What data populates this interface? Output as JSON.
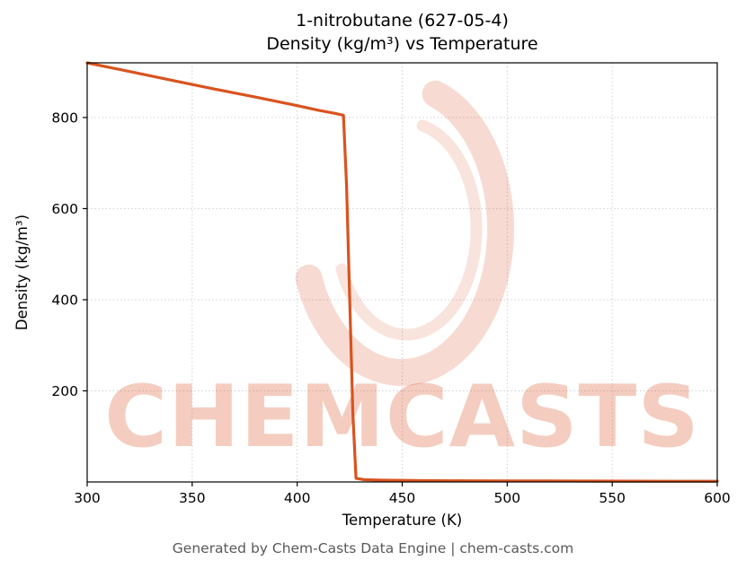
{
  "title": {
    "line1": "1-nitrobutane (627-05-4)",
    "line2": "Density (kg/m³) vs Temperature"
  },
  "footer": "Generated by Chem-Casts Data Engine | chem-casts.com",
  "watermark": {
    "text": "CHEMCASTS",
    "color": "#d94a1e",
    "text_opacity": 0.28,
    "swirl_opacity": 0.2
  },
  "chart_data": {
    "type": "line",
    "title": "1-nitrobutane (627-05-4) Density (kg/m³) vs Temperature",
    "xlabel": "Temperature (K)",
    "ylabel": "Density (kg/m³)",
    "xlim": [
      300,
      600
    ],
    "ylim": [
      0,
      920
    ],
    "xticks": [
      300,
      350,
      400,
      450,
      500,
      550,
      600
    ],
    "yticks": [
      200,
      400,
      600,
      800
    ],
    "grid": true,
    "legend": false,
    "line_color": "#d9531e",
    "series": [
      {
        "name": "density",
        "x": [
          300,
          320,
          340,
          360,
          380,
          400,
          410,
          418,
          422,
          423.5,
          425,
          426.5,
          428,
          432,
          440,
          460,
          480,
          500,
          520,
          540,
          560,
          580,
          600
        ],
        "y": [
          920,
          901,
          882,
          863,
          845,
          826,
          816,
          809,
          805,
          650,
          400,
          150,
          8,
          5,
          4,
          3,
          2.6,
          2.3,
          2.1,
          1.9,
          1.7,
          1.6,
          1.5
        ]
      }
    ]
  }
}
